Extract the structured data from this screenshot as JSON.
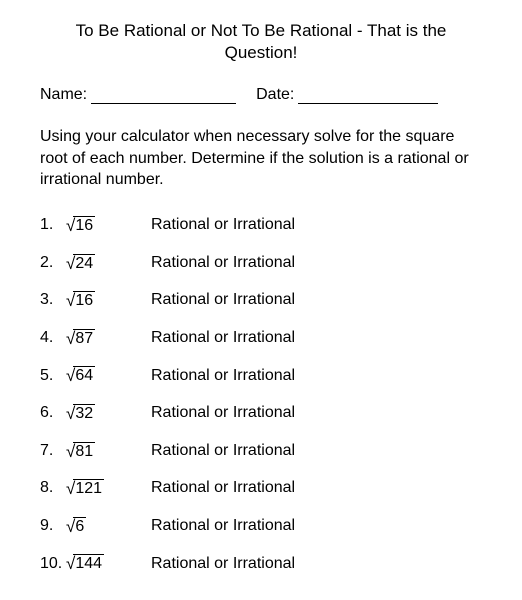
{
  "title": "To Be Rational or Not To Be Rational - That is the Question!",
  "nameLabel": "Name:",
  "dateLabel": "Date:",
  "instructions": "Using your calculator when necessary solve for the square root of each number.  Determine if the solution is a rational or irrational number.",
  "answerText": "Rational or Irrational",
  "problems": [
    {
      "num": "1.",
      "value": "16"
    },
    {
      "num": "2.",
      "value": "24"
    },
    {
      "num": "3.",
      "value": "16"
    },
    {
      "num": "4.",
      "value": "87"
    },
    {
      "num": "5.",
      "value": "64"
    },
    {
      "num": "6.",
      "value": "32"
    },
    {
      "num": "7.",
      "value": "81"
    },
    {
      "num": "8.",
      "value": "121"
    },
    {
      "num": "9.",
      "value": "6"
    },
    {
      "num": "10.",
      "value": "144"
    }
  ]
}
